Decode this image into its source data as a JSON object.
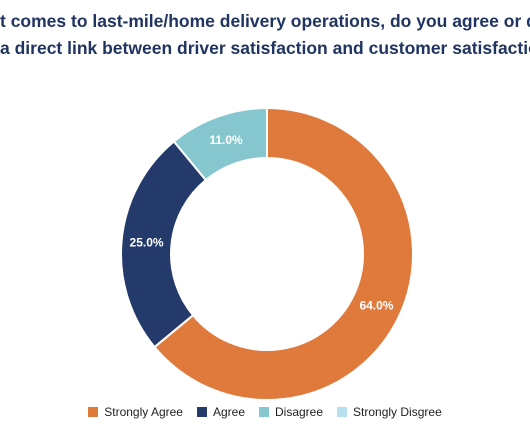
{
  "title_lines": [
    "t comes to last-mile/home delivery operations, do you agree or disagr",
    "a direct link between driver satisfaction and customer satisfaction?"
  ],
  "chart_data": {
    "type": "pie",
    "donut": true,
    "categories": [
      "Strongly Agree",
      "Agree",
      "Disagree",
      "Strongly Disgree"
    ],
    "values": [
      64.0,
      25.0,
      11.0,
      0.0
    ],
    "labels": [
      "64.0%",
      "25.0%",
      "11.0%",
      ""
    ],
    "colors": [
      "#e07a3c",
      "#243a6b",
      "#86c7cf",
      "#b8dff0"
    ],
    "legend_position": "bottom"
  }
}
